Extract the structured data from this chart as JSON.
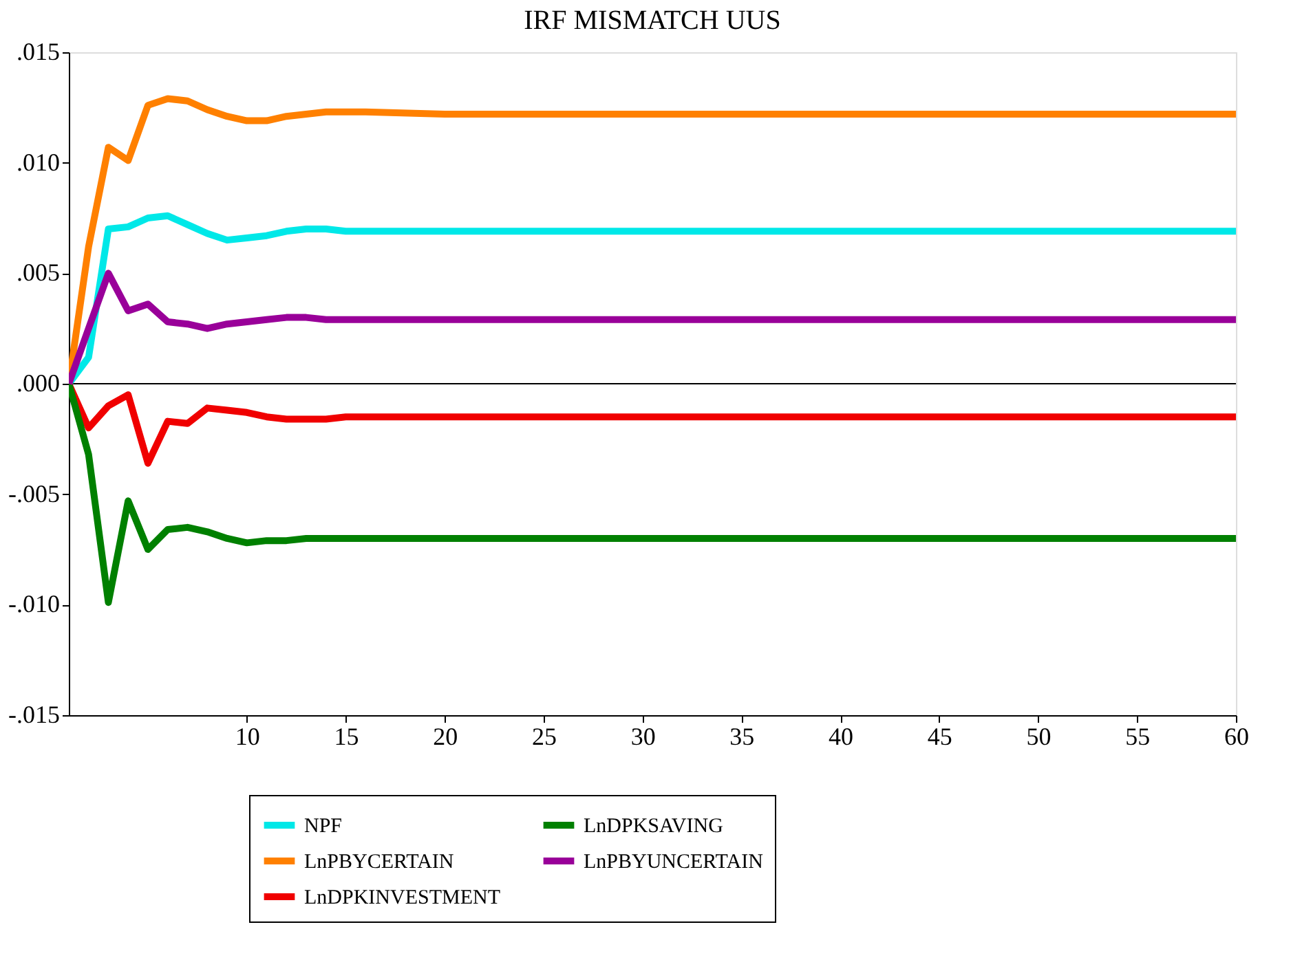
{
  "chart_data": {
    "type": "line",
    "title": "IRF MISMATCH UUS",
    "x": [
      1,
      2,
      3,
      4,
      5,
      6,
      7,
      8,
      9,
      10,
      11,
      12,
      13,
      14,
      15,
      16,
      20,
      30,
      40,
      50,
      60
    ],
    "xlim": [
      1,
      60
    ],
    "xticks": [
      10,
      15,
      20,
      25,
      30,
      35,
      40,
      45,
      50,
      55,
      60
    ],
    "ylim": [
      -0.015,
      0.015
    ],
    "yticks": [
      {
        "value": -0.015,
        "label": "-.015"
      },
      {
        "value": -0.01,
        "label": "-.010"
      },
      {
        "value": -0.005,
        "label": "-.005"
      },
      {
        "value": 0,
        "label": ".000"
      },
      {
        "value": 0.005,
        "label": ".005"
      },
      {
        "value": 0.01,
        "label": ".010"
      },
      {
        "value": 0.015,
        "label": ".015"
      }
    ],
    "grid": false,
    "legend": "bottom",
    "marker": "none",
    "line_style": "solid",
    "ref_lines": [
      {
        "axis": "y",
        "value": 0,
        "label": null,
        "color": "#000000"
      }
    ],
    "series": [
      {
        "name": "NPF",
        "color": "#00e8e8",
        "values": [
          0,
          0.0012,
          0.007,
          0.0071,
          0.0075,
          0.0076,
          0.0072,
          0.0068,
          0.0065,
          0.0066,
          0.0067,
          0.0069,
          0.007,
          0.007,
          0.0069,
          0.0069,
          0.0069,
          0.0069,
          0.0069,
          0.0069,
          0.0069
        ]
      },
      {
        "name": "LnPBYCERTAIN",
        "color": "#ff8000",
        "values": [
          0,
          0.0062,
          0.0107,
          0.0101,
          0.0126,
          0.0129,
          0.0128,
          0.0124,
          0.0121,
          0.0119,
          0.0119,
          0.0121,
          0.0122,
          0.0123,
          0.0123,
          0.0123,
          0.0122,
          0.0122,
          0.0122,
          0.0122,
          0.0122
        ]
      },
      {
        "name": "LnDPKINVESTMENT",
        "color": "#f00000",
        "values": [
          0,
          -0.002,
          -0.001,
          -0.0005,
          -0.0036,
          -0.0017,
          -0.0018,
          -0.0011,
          -0.0012,
          -0.0013,
          -0.0015,
          -0.0016,
          -0.0016,
          -0.0016,
          -0.0015,
          -0.0015,
          -0.0015,
          -0.0015,
          -0.0015,
          -0.0015,
          -0.0015
        ]
      },
      {
        "name": "LnDPKSAVING",
        "color": "#008000",
        "values": [
          0,
          -0.0032,
          -0.0099,
          -0.0053,
          -0.0075,
          -0.0066,
          -0.0065,
          -0.0067,
          -0.007,
          -0.0072,
          -0.0071,
          -0.0071,
          -0.007,
          -0.007,
          -0.007,
          -0.007,
          -0.007,
          -0.007,
          -0.007,
          -0.007,
          -0.007
        ]
      },
      {
        "name": "LnPBYUNCERTAIN",
        "color": "#990099",
        "values": [
          0,
          0.0025,
          0.005,
          0.0033,
          0.0036,
          0.0028,
          0.0027,
          0.0025,
          0.0027,
          0.0028,
          0.0029,
          0.003,
          0.003,
          0.0029,
          0.0029,
          0.0029,
          0.0029,
          0.0029,
          0.0029,
          0.0029,
          0.0029
        ]
      }
    ]
  }
}
